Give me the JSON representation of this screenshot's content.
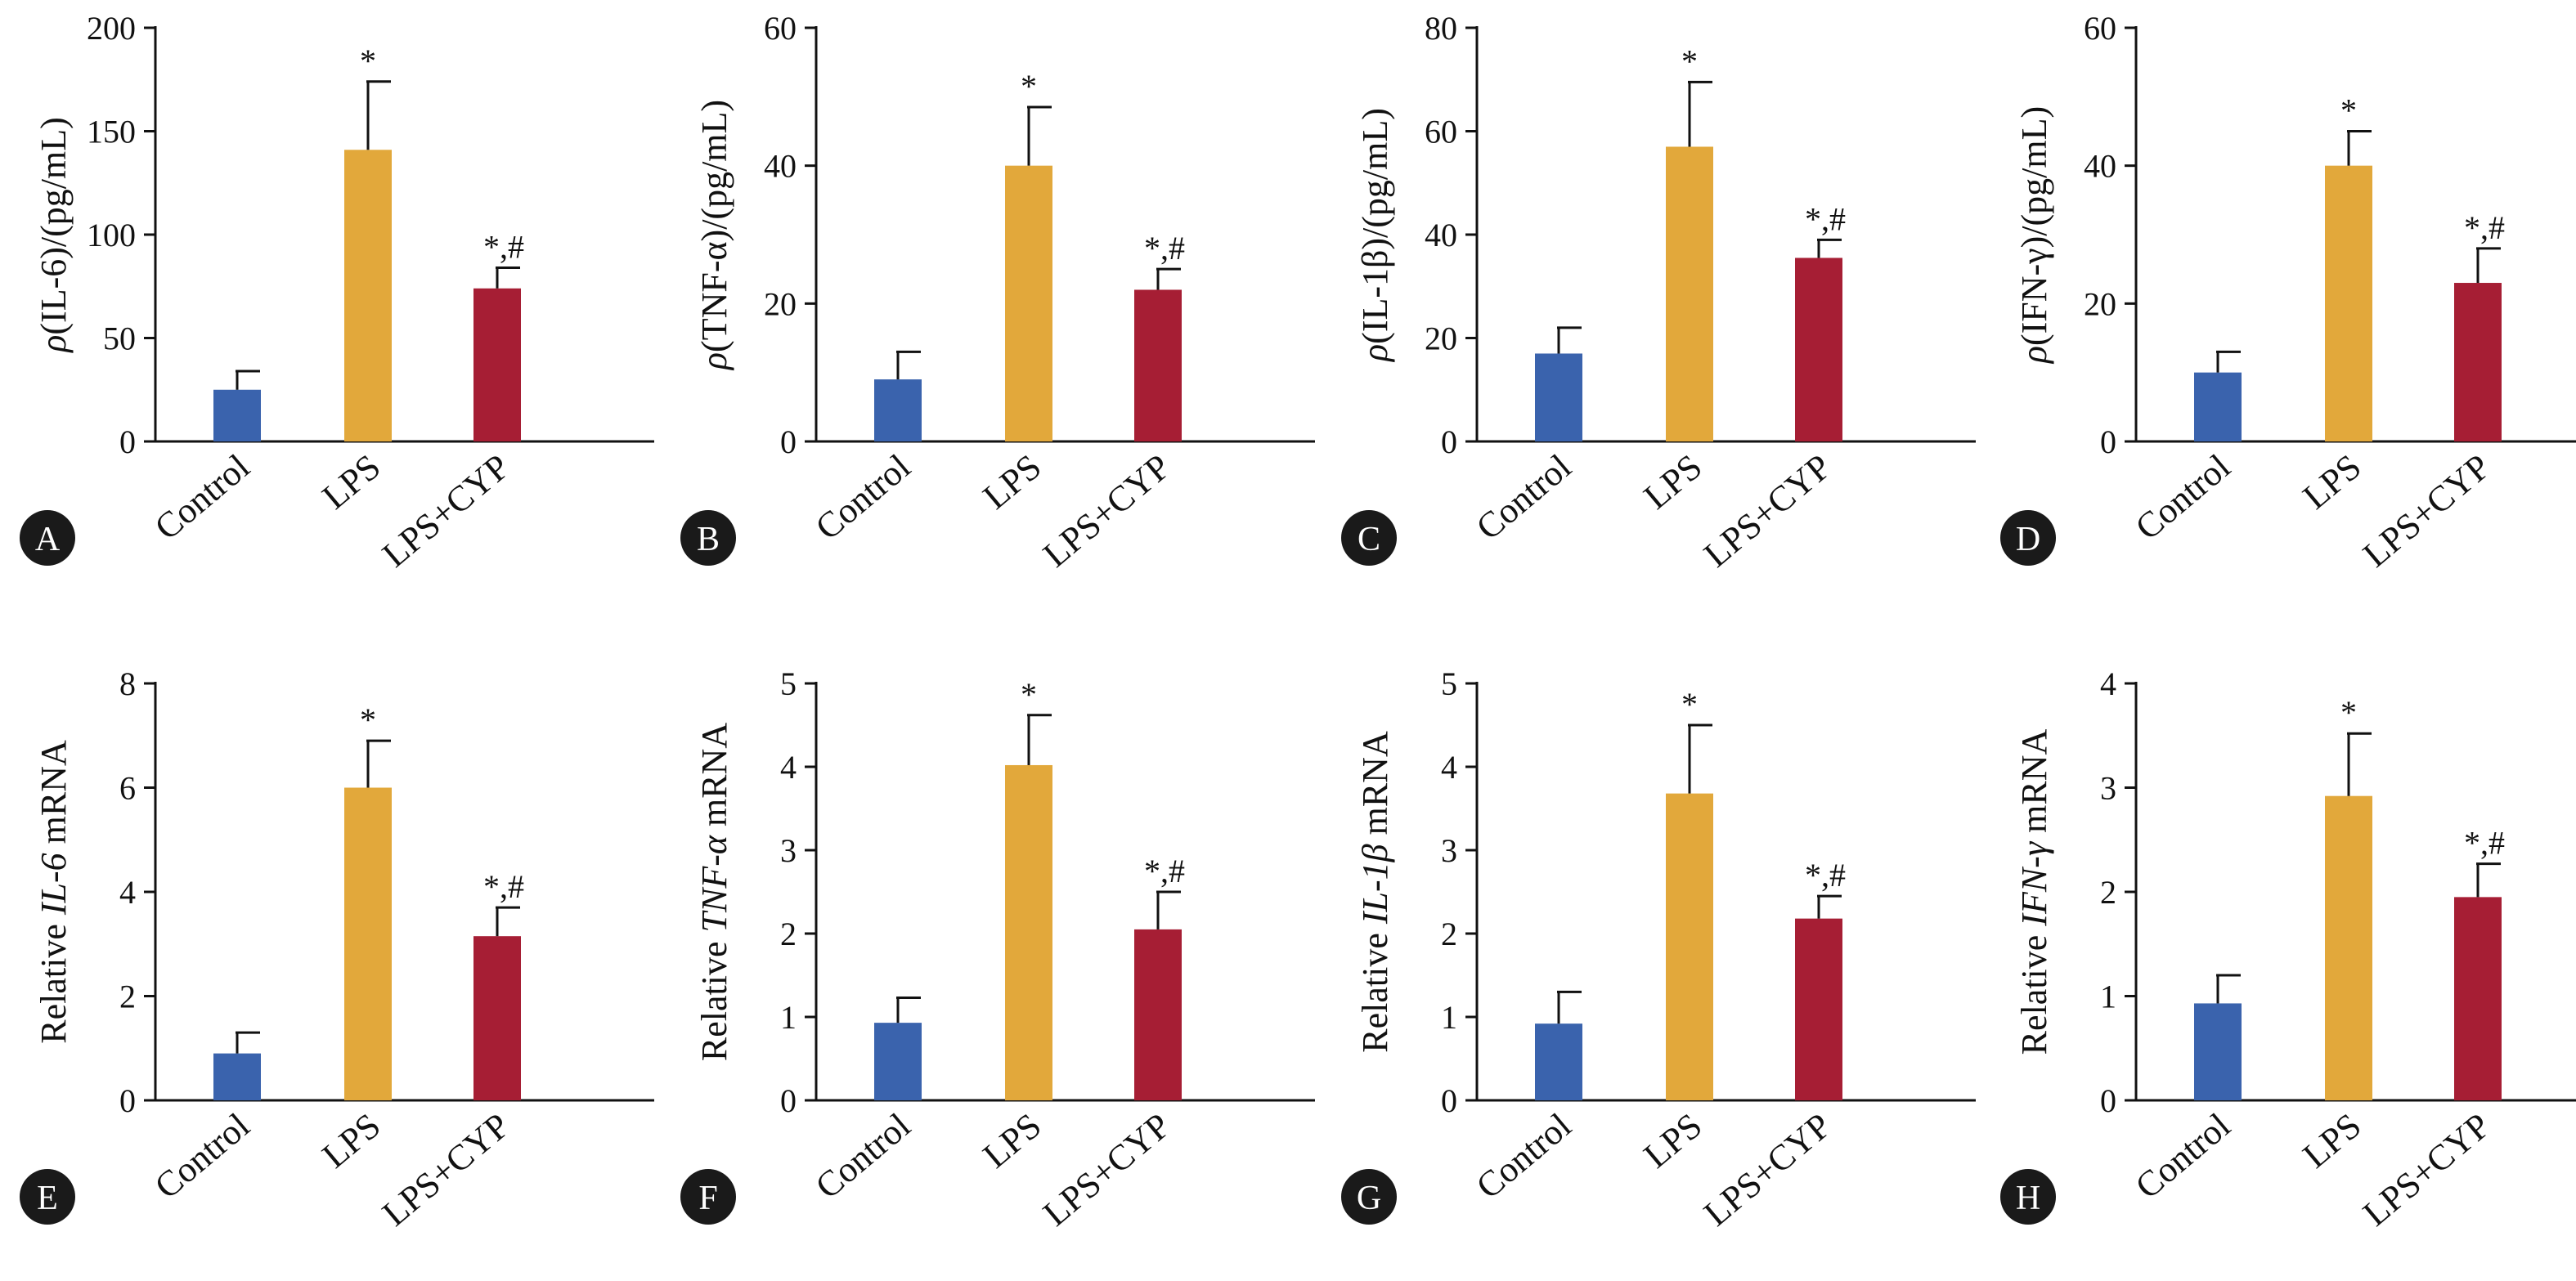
{
  "colors": {
    "control": "#3a63ad",
    "lps": "#e2a83b",
    "lps_cyp": "#a61e34",
    "axis": "#111111",
    "badge": "#1a1a1a"
  },
  "chart_data": [
    {
      "type": "bar",
      "panel": "A",
      "ylabel_parts": [
        {
          "t": "ρ",
          "i": true
        },
        {
          "t": "(IL-6)/(pg/mL)",
          "i": false
        }
      ],
      "categories": [
        "Control",
        "LPS",
        "LPS+CYP"
      ],
      "values": [
        25,
        141,
        74
      ],
      "errors": [
        9,
        33,
        10
      ],
      "significance": [
        "",
        "*",
        "*,#"
      ],
      "ylim": [
        0,
        200
      ],
      "ticks": [
        0,
        50,
        100,
        150,
        200
      ]
    },
    {
      "type": "bar",
      "panel": "B",
      "ylabel_parts": [
        {
          "t": "ρ",
          "i": true
        },
        {
          "t": "(TNF-α)/(pg/mL)",
          "i": false
        }
      ],
      "categories": [
        "Control",
        "LPS",
        "LPS+CYP"
      ],
      "values": [
        9,
        40,
        22
      ],
      "errors": [
        4,
        8.5,
        3
      ],
      "significance": [
        "",
        "*",
        "*,#"
      ],
      "ylim": [
        0,
        60
      ],
      "ticks": [
        0,
        20,
        40,
        60
      ]
    },
    {
      "type": "bar",
      "panel": "C",
      "ylabel_parts": [
        {
          "t": "ρ",
          "i": true
        },
        {
          "t": "(IL-1β)/(pg/mL)",
          "i": false
        }
      ],
      "categories": [
        "Control",
        "LPS",
        "LPS+CYP"
      ],
      "values": [
        17,
        57,
        35.5
      ],
      "errors": [
        5,
        12.5,
        3.5
      ],
      "significance": [
        "",
        "*",
        "*,#"
      ],
      "ylim": [
        0,
        80
      ],
      "ticks": [
        0,
        20,
        40,
        60,
        80
      ]
    },
    {
      "type": "bar",
      "panel": "D",
      "ylabel_parts": [
        {
          "t": "ρ",
          "i": true
        },
        {
          "t": "(IFN-γ)/(pg/mL)",
          "i": false
        }
      ],
      "categories": [
        "Control",
        "LPS",
        "LPS+CYP"
      ],
      "values": [
        10,
        40,
        23
      ],
      "errors": [
        3,
        5,
        5
      ],
      "significance": [
        "",
        "*",
        "*,#"
      ],
      "ylim": [
        0,
        60
      ],
      "ticks": [
        0,
        20,
        40,
        60
      ]
    },
    {
      "type": "bar",
      "panel": "E",
      "ylabel_parts": [
        {
          "t": "Relative ",
          "i": false
        },
        {
          "t": "IL-6",
          "i": true
        },
        {
          "t": " mRNA",
          "i": false
        }
      ],
      "categories": [
        "Control",
        "LPS",
        "LPS+CYP"
      ],
      "values": [
        0.9,
        6.0,
        3.15
      ],
      "errors": [
        0.4,
        0.9,
        0.55
      ],
      "significance": [
        "",
        "*",
        "*,#"
      ],
      "ylim": [
        0,
        8
      ],
      "ticks": [
        0,
        2,
        4,
        6,
        8
      ]
    },
    {
      "type": "bar",
      "panel": "F",
      "ylabel_parts": [
        {
          "t": "Relative ",
          "i": false
        },
        {
          "t": "TNF-α",
          "i": true
        },
        {
          "t": " mRNA",
          "i": false
        }
      ],
      "categories": [
        "Control",
        "LPS",
        "LPS+CYP"
      ],
      "values": [
        0.93,
        4.02,
        2.05
      ],
      "errors": [
        0.3,
        0.6,
        0.45
      ],
      "significance": [
        "",
        "*",
        "*,#"
      ],
      "ylim": [
        0,
        5
      ],
      "ticks": [
        0,
        1,
        2,
        3,
        4,
        5
      ]
    },
    {
      "type": "bar",
      "panel": "G",
      "ylabel_parts": [
        {
          "t": "Relative ",
          "i": false
        },
        {
          "t": "IL-1β",
          "i": true
        },
        {
          "t": " mRNA",
          "i": false
        }
      ],
      "categories": [
        "Control",
        "LPS",
        "LPS+CYP"
      ],
      "values": [
        0.92,
        3.68,
        2.18
      ],
      "errors": [
        0.38,
        0.82,
        0.27
      ],
      "significance": [
        "",
        "*",
        "*,#"
      ],
      "ylim": [
        0,
        5
      ],
      "ticks": [
        0,
        1,
        2,
        3,
        4,
        5
      ]
    },
    {
      "type": "bar",
      "panel": "H",
      "ylabel_parts": [
        {
          "t": "Relative ",
          "i": false
        },
        {
          "t": "IFN-γ",
          "i": true
        },
        {
          "t": " mRNA",
          "i": false
        }
      ],
      "categories": [
        "Control",
        "LPS",
        "LPS+CYP"
      ],
      "values": [
        0.93,
        2.92,
        1.95
      ],
      "errors": [
        0.27,
        0.6,
        0.32
      ],
      "significance": [
        "",
        "*",
        "*,#"
      ],
      "ylim": [
        0,
        4
      ],
      "ticks": [
        0,
        1,
        2,
        3,
        4
      ]
    }
  ]
}
